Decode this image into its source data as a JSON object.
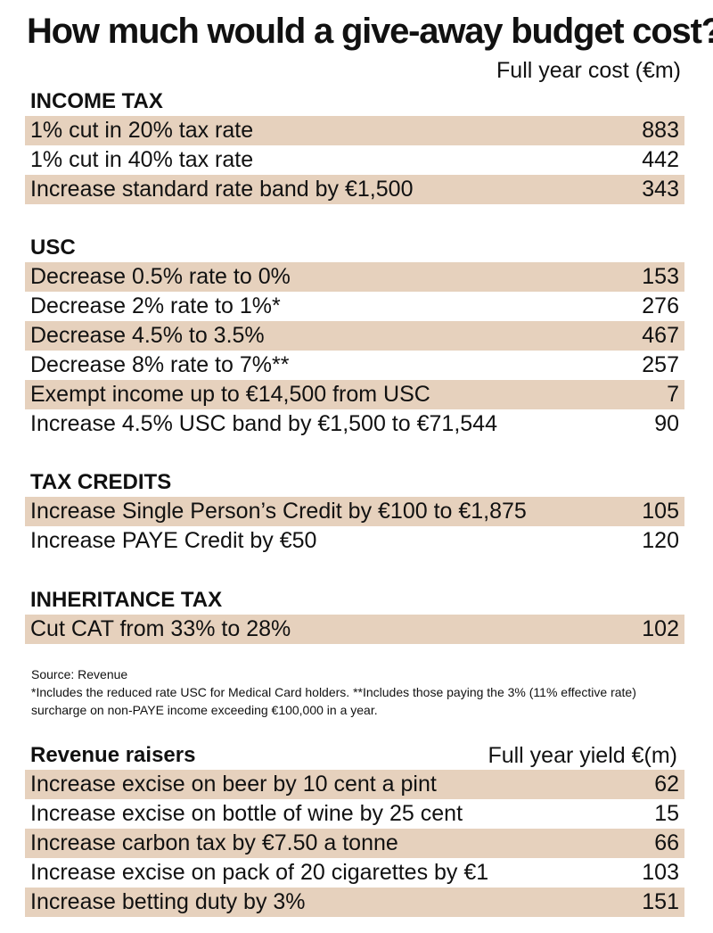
{
  "title": "How much would a give-away budget cost?",
  "column_header": "Full year cost (€m)",
  "sections": [
    {
      "title": "INCOME TAX",
      "rows": [
        {
          "label": "1% cut in 20% tax rate",
          "value": "883"
        },
        {
          "label": "1% cut in 40% tax rate",
          "value": "442"
        },
        {
          "label": "Increase standard rate band by €1,500",
          "value": "343"
        }
      ]
    },
    {
      "title": "USC",
      "rows": [
        {
          "label": "Decrease 0.5% rate to 0%",
          "value": "153"
        },
        {
          "label": "Decrease 2% rate to 1%*",
          "value": "276"
        },
        {
          "label": "Decrease 4.5% to 3.5%",
          "value": "467"
        },
        {
          "label": "Decrease 8% rate to 7%**",
          "value": "257"
        },
        {
          "label": "Exempt income up to €14,500 from USC",
          "value": "7"
        },
        {
          "label": "Increase 4.5% USC band by €1,500 to €71,544",
          "value": "90"
        }
      ]
    },
    {
      "title": "TAX CREDITS",
      "rows": [
        {
          "label": "Increase Single Person’s Credit by €100 to €1,875",
          "value": "105"
        },
        {
          "label": "Increase PAYE Credit by €50",
          "value": "120"
        }
      ]
    },
    {
      "title": "INHERITANCE TAX",
      "rows": [
        {
          "label": "Cut CAT from 33% to 28%",
          "value": "102"
        }
      ]
    }
  ],
  "notes": {
    "source": "Source: Revenue",
    "footnote": "*Includes the reduced rate USC for Medical Card holders. **Includes those paying the 3% (11% effective rate) surcharge on non-PAYE income exceeding €100,000 in a year."
  },
  "revenue_raisers": {
    "title": "Revenue raisers",
    "column_header": "Full year yield €(m)",
    "rows": [
      {
        "label": "Increase excise on beer by 10 cent a pint",
        "value": "62"
      },
      {
        "label": "Increase excise on bottle of wine by 25 cent",
        "value": "15"
      },
      {
        "label": "Increase carbon tax by €7.50 a tonne",
        "value": "66"
      },
      {
        "label": "Increase excise on pack of 20 cigarettes by €1",
        "value": "103"
      },
      {
        "label": "Increase betting duty by 3%",
        "value": "151"
      }
    ]
  },
  "colors": {
    "row_shade": "#e6d1bd",
    "text": "#111111",
    "background": "#ffffff"
  }
}
